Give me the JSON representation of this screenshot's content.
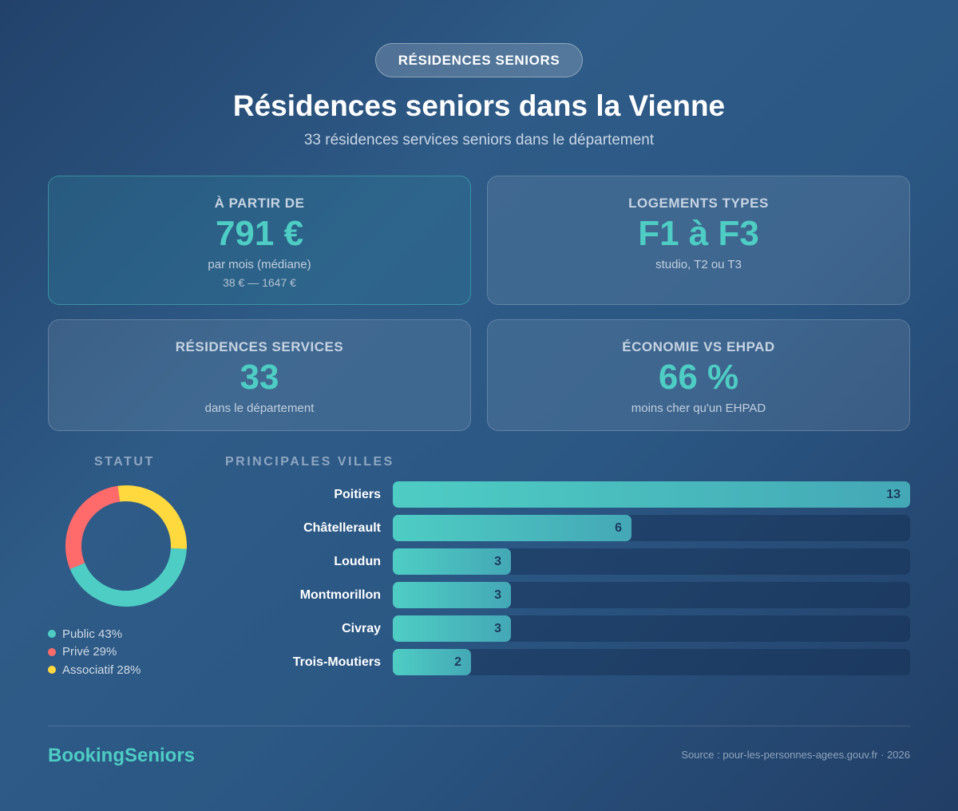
{
  "header": {
    "pill": "RÉSIDENCES SENIORS",
    "title": "Résidences seniors dans la Vienne",
    "subtitle": "33 résidences services seniors dans le département"
  },
  "cards": [
    {
      "label": "À PARTIR DE",
      "value": "791 €",
      "sub": "par mois (médiane)",
      "sub2": "38 € — 1647 €"
    },
    {
      "label": "LOGEMENTS TYPES",
      "value": "F1 à F3",
      "sub": "studio, T2 ou T3"
    },
    {
      "label": "RÉSIDENCES SERVICES",
      "value": "33",
      "sub": "dans le département"
    },
    {
      "label": "ÉCONOMIE VS EHPAD",
      "value": "66 %",
      "sub": "moins cher qu'un EHPAD"
    }
  ],
  "statut": {
    "heading": "STATUT",
    "legend": [
      {
        "label": "Public 43%",
        "color": "#4ecdc4"
      },
      {
        "label": "Privé 29%",
        "color": "#ff6b6b"
      },
      {
        "label": "Associatif 28%",
        "color": "#ffd93d"
      }
    ]
  },
  "villes": {
    "heading": "PRINCIPALES VILLES"
  },
  "footer": {
    "brand": "BookingSeniors",
    "source": "Source : pour-les-personnes-agees.gouv.fr · 2026"
  },
  "colors": {
    "accent": "#4ecdc4",
    "red": "#ff6b6b",
    "yellow": "#ffd93d"
  },
  "chart_data": [
    {
      "type": "pie",
      "title": "STATUT",
      "categories": [
        "Public",
        "Privé",
        "Associatif"
      ],
      "values": [
        43,
        29,
        28
      ],
      "unit": "%",
      "colors": [
        "#4ecdc4",
        "#ff6b6b",
        "#ffd93d"
      ],
      "donut": true,
      "legend_position": "bottom"
    },
    {
      "type": "bar",
      "orientation": "horizontal",
      "title": "PRINCIPALES VILLES",
      "categories": [
        "Poitiers",
        "Châtellerault",
        "Loudun",
        "Montmorillon",
        "Civray",
        "Trois-Moutiers"
      ],
      "values": [
        13,
        6,
        3,
        3,
        3,
        2
      ],
      "xlim": [
        0,
        13
      ],
      "grid": false,
      "data_labels": true
    }
  ]
}
